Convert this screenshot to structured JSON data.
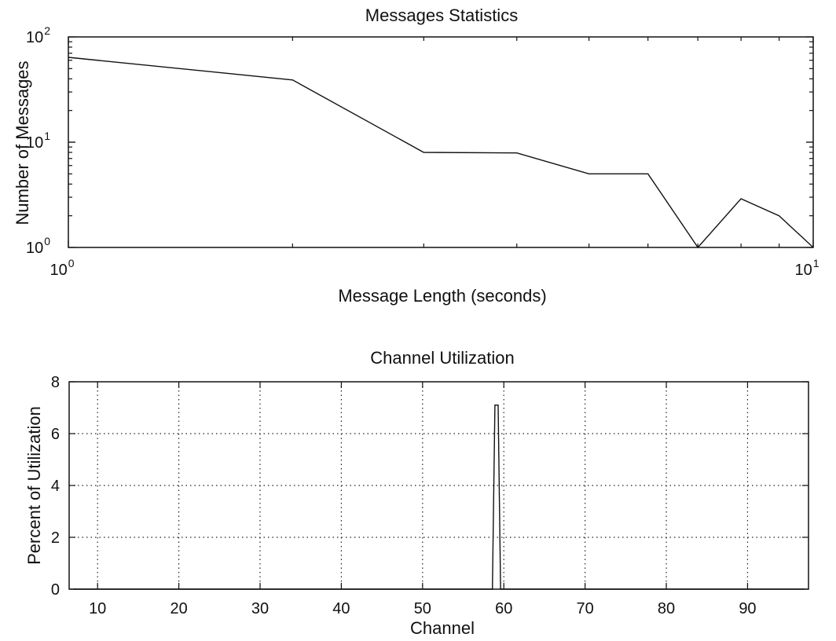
{
  "chart_data": [
    {
      "type": "line",
      "title": "Messages Statistics",
      "xlabel": "Message Length (seconds)",
      "ylabel": "Number of Messages",
      "x_scale": "log",
      "y_scale": "log",
      "xlim": [
        1,
        10
      ],
      "ylim": [
        1,
        100
      ],
      "grid": false,
      "x_ticks": [
        {
          "value": 1,
          "base": "10",
          "exp": "0"
        },
        {
          "value": 10,
          "base": "10",
          "exp": "1"
        }
      ],
      "y_ticks": [
        {
          "value": 1,
          "base": "10",
          "exp": "0"
        },
        {
          "value": 10,
          "base": "10",
          "exp": "1"
        },
        {
          "value": 100,
          "base": "10",
          "exp": "2"
        }
      ],
      "series": [
        {
          "x": [
            1,
            2,
            3,
            4,
            5,
            6,
            7,
            8,
            9,
            10
          ],
          "y": [
            64,
            39,
            8,
            7.9,
            5,
            5,
            1,
            2.9,
            2,
            1
          ]
        }
      ]
    },
    {
      "type": "line",
      "title": "Channel Utilization",
      "xlabel": "Channel",
      "ylabel": "Percent of Utilization",
      "xlim": [
        6.5,
        97.5
      ],
      "ylim": [
        0,
        8
      ],
      "grid": true,
      "x_ticks": [
        "10",
        "20",
        "30",
        "40",
        "50",
        "60",
        "70",
        "80",
        "90"
      ],
      "y_ticks": [
        "0",
        "2",
        "4",
        "6",
        "8"
      ],
      "series": [
        {
          "x": [
            7,
            58.6,
            58.9,
            59.3,
            59.6,
            97
          ],
          "y": [
            0,
            0,
            7.1,
            7.1,
            0,
            0
          ]
        }
      ]
    }
  ],
  "colors": {
    "line": "#111111",
    "background": "#ffffff"
  }
}
